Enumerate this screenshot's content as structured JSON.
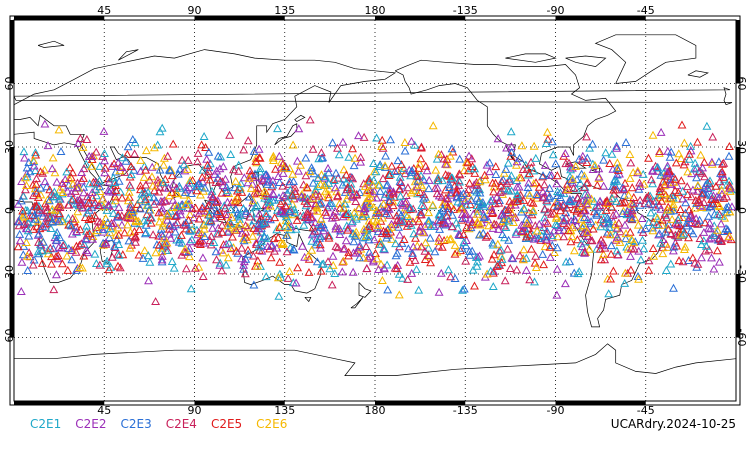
{
  "map": {
    "lon_ticks_top": [
      "45",
      "90",
      "135",
      "180",
      "-135",
      "-90",
      "-45"
    ],
    "lon_ticks_bottom": [
      "45",
      "90",
      "135",
      "180",
      "-135",
      "-90",
      "-45"
    ],
    "lon_tick_values": [
      45,
      90,
      135,
      180,
      225,
      270,
      315
    ],
    "lat_ticks_left": [
      "60",
      "30",
      "0",
      "-30",
      "-60"
    ],
    "lat_ticks_right": [
      "60",
      "30",
      "0",
      "-30",
      "-60"
    ],
    "lat_tick_values": [
      60,
      30,
      0,
      -30,
      -60
    ],
    "lon_range": [
      0,
      360
    ],
    "lat_range": [
      -90,
      90
    ],
    "grid": "dotted",
    "coastline_color": "#000000",
    "marker_shape": "open-triangle",
    "observation_lat_band": [
      -45,
      45
    ]
  },
  "legend": {
    "items": [
      {
        "label": "C2E1",
        "color": "#1fa8c9"
      },
      {
        "label": "C2E2",
        "color": "#9b2fb8"
      },
      {
        "label": "C2E3",
        "color": "#2a6fd6"
      },
      {
        "label": "C2E4",
        "color": "#c8205a"
      },
      {
        "label": "C2E5",
        "color": "#e01b1b"
      },
      {
        "label": "C2E6",
        "color": "#f5b800"
      }
    ]
  },
  "stamp": "UCARdry.2024-10-25"
}
